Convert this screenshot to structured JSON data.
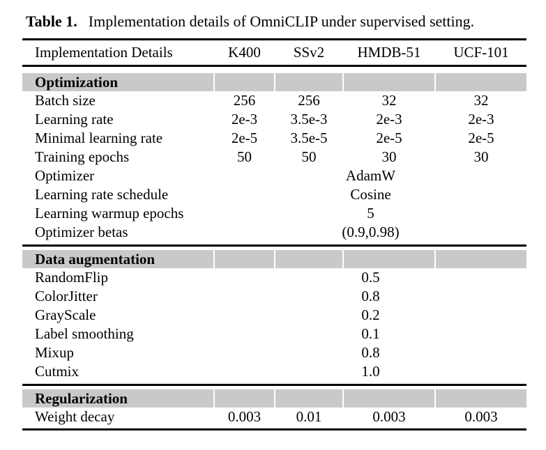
{
  "caption": {
    "label": "Table 1.",
    "text": "Implementation details of OmniCLIP under supervised setting."
  },
  "columns": [
    "Implementation Details",
    "K400",
    "SSv2",
    "HMDB-51",
    "UCF-101"
  ],
  "sections": [
    {
      "title": "Optimization",
      "rows": [
        {
          "label": "Batch size",
          "values": [
            "256",
            "256",
            "32",
            "32"
          ]
        },
        {
          "label": "Learning rate",
          "values": [
            "2e-3",
            "3.5e-3",
            "2e-3",
            "2e-3"
          ]
        },
        {
          "label": "Minimal learning rate",
          "values": [
            "2e-5",
            "3.5e-5",
            "2e-5",
            "2e-5"
          ]
        },
        {
          "label": "Training epochs",
          "values": [
            "50",
            "50",
            "30",
            "30"
          ]
        },
        {
          "label": "Optimizer",
          "span_value": "AdamW"
        },
        {
          "label": "Learning rate schedule",
          "span_value": "Cosine"
        },
        {
          "label": "Learning warmup epochs",
          "span_value": "5"
        },
        {
          "label": "Optimizer betas",
          "span_value": "(0.9,0.98)"
        }
      ]
    },
    {
      "title": "Data augmentation",
      "rows": [
        {
          "label": "RandomFlip",
          "span_value": "0.5"
        },
        {
          "label": "ColorJitter",
          "span_value": "0.8"
        },
        {
          "label": "GrayScale",
          "span_value": "0.2"
        },
        {
          "label": "Label smoothing",
          "span_value": "0.1"
        },
        {
          "label": "Mixup",
          "span_value": "0.8"
        },
        {
          "label": "Cutmix",
          "span_value": "1.0"
        }
      ]
    },
    {
      "title": "Regularization",
      "rows": [
        {
          "label": "Weight decay",
          "values": [
            "0.003",
            "0.01",
            "0.003",
            "0.003"
          ]
        }
      ]
    }
  ],
  "colors": {
    "section_band": "#c9c9c9",
    "rule": "#000000",
    "text": "#000000",
    "background": "#ffffff"
  }
}
